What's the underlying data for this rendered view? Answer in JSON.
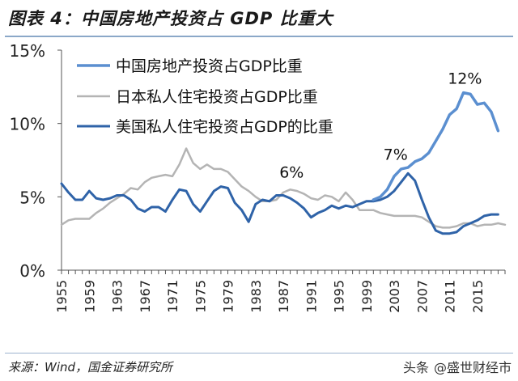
{
  "header": {
    "title": "图表 4：中国房地产投资占 GDP 比重大"
  },
  "footer": {
    "source": "来源：Wind，国金证券研究所"
  },
  "watermark": {
    "prefix": "头条",
    "handle": "@盛世财经市"
  },
  "colors": {
    "china": "#5b8fd0",
    "japan": "#b4b4b4",
    "usa": "#2f63a8",
    "axis": "#555555",
    "header_rule": "#8ba8c8"
  },
  "chart_data": {
    "type": "line",
    "title": "",
    "xlabel": "",
    "ylabel": "",
    "xlim": [
      1955,
      2019
    ],
    "ylim": [
      0,
      15
    ],
    "grid": false,
    "legend_position": "top-left",
    "x_tick_labels": [
      "1955",
      "1959",
      "1963",
      "1967",
      "1971",
      "1975",
      "1979",
      "1983",
      "1987",
      "1991",
      "1995",
      "1999",
      "2003",
      "2007",
      "2011",
      "2015"
    ],
    "y_tick_labels": [
      "0%",
      "5%",
      "10%",
      "15%"
    ],
    "y_ticks": [
      0,
      5,
      10,
      15
    ],
    "annotations": [
      {
        "text": "6%",
        "x": 1988.2,
        "y": 6.1
      },
      {
        "text": "7%",
        "x": 2003.2,
        "y": 7.3
      },
      {
        "text": "12%",
        "x": 2013.2,
        "y": 12.5
      }
    ],
    "series": [
      {
        "name": "中国房地产投资占GDP比重",
        "key": "china",
        "points": [
          [
            2000,
            4.8
          ],
          [
            2001,
            5.0
          ],
          [
            2002,
            5.5
          ],
          [
            2003,
            6.4
          ],
          [
            2004,
            6.9
          ],
          [
            2005,
            7.0
          ],
          [
            2006,
            7.4
          ],
          [
            2007,
            7.6
          ],
          [
            2008,
            8.0
          ],
          [
            2009,
            8.8
          ],
          [
            2010,
            9.6
          ],
          [
            2011,
            10.6
          ],
          [
            2012,
            11.0
          ],
          [
            2013,
            12.1
          ],
          [
            2014,
            12.0
          ],
          [
            2015,
            11.3
          ],
          [
            2016,
            11.4
          ],
          [
            2017,
            10.8
          ],
          [
            2018,
            9.5
          ]
        ]
      },
      {
        "name": "日本私人住宅投资占GDP比重",
        "key": "japan",
        "points": [
          [
            1955,
            3.1
          ],
          [
            1956,
            3.4
          ],
          [
            1957,
            3.5
          ],
          [
            1958,
            3.5
          ],
          [
            1959,
            3.5
          ],
          [
            1960,
            3.9
          ],
          [
            1961,
            4.2
          ],
          [
            1962,
            4.6
          ],
          [
            1963,
            4.9
          ],
          [
            1964,
            5.2
          ],
          [
            1965,
            5.6
          ],
          [
            1966,
            5.5
          ],
          [
            1967,
            6.0
          ],
          [
            1968,
            6.3
          ],
          [
            1969,
            6.4
          ],
          [
            1970,
            6.5
          ],
          [
            1971,
            6.4
          ],
          [
            1972,
            7.2
          ],
          [
            1973,
            8.3
          ],
          [
            1974,
            7.3
          ],
          [
            1975,
            6.9
          ],
          [
            1976,
            7.2
          ],
          [
            1977,
            6.9
          ],
          [
            1978,
            6.9
          ],
          [
            1979,
            6.7
          ],
          [
            1980,
            6.2
          ],
          [
            1981,
            5.7
          ],
          [
            1982,
            5.4
          ],
          [
            1983,
            5.0
          ],
          [
            1984,
            4.7
          ],
          [
            1985,
            4.7
          ],
          [
            1986,
            4.8
          ],
          [
            1987,
            5.3
          ],
          [
            1988,
            5.5
          ],
          [
            1989,
            5.4
          ],
          [
            1990,
            5.2
          ],
          [
            1991,
            4.9
          ],
          [
            1992,
            4.8
          ],
          [
            1993,
            5.1
          ],
          [
            1994,
            5.0
          ],
          [
            1995,
            4.7
          ],
          [
            1996,
            5.3
          ],
          [
            1997,
            4.8
          ],
          [
            1998,
            4.1
          ],
          [
            1999,
            4.1
          ],
          [
            2000,
            4.1
          ],
          [
            2001,
            3.9
          ],
          [
            2002,
            3.8
          ],
          [
            2003,
            3.7
          ],
          [
            2004,
            3.7
          ],
          [
            2005,
            3.7
          ],
          [
            2006,
            3.7
          ],
          [
            2007,
            3.6
          ],
          [
            2008,
            3.3
          ],
          [
            2009,
            3.0
          ],
          [
            2010,
            2.9
          ],
          [
            2011,
            2.9
          ],
          [
            2012,
            3.0
          ],
          [
            2013,
            3.2
          ],
          [
            2014,
            3.2
          ],
          [
            2015,
            3.0
          ],
          [
            2016,
            3.1
          ],
          [
            2017,
            3.1
          ],
          [
            2018,
            3.2
          ],
          [
            2019,
            3.1
          ]
        ]
      },
      {
        "name": "美国私人住宅投资占GDP的比重",
        "key": "usa",
        "points": [
          [
            1955,
            5.9
          ],
          [
            1956,
            5.3
          ],
          [
            1957,
            4.8
          ],
          [
            1958,
            4.8
          ],
          [
            1959,
            5.4
          ],
          [
            1960,
            4.9
          ],
          [
            1961,
            4.8
          ],
          [
            1962,
            4.9
          ],
          [
            1963,
            5.1
          ],
          [
            1964,
            5.1
          ],
          [
            1965,
            4.8
          ],
          [
            1966,
            4.2
          ],
          [
            1967,
            4.0
          ],
          [
            1968,
            4.3
          ],
          [
            1969,
            4.3
          ],
          [
            1970,
            4.0
          ],
          [
            1971,
            4.8
          ],
          [
            1972,
            5.5
          ],
          [
            1973,
            5.4
          ],
          [
            1974,
            4.5
          ],
          [
            1975,
            4.0
          ],
          [
            1976,
            4.7
          ],
          [
            1977,
            5.4
          ],
          [
            1978,
            5.7
          ],
          [
            1979,
            5.6
          ],
          [
            1980,
            4.6
          ],
          [
            1981,
            4.1
          ],
          [
            1982,
            3.3
          ],
          [
            1983,
            4.5
          ],
          [
            1984,
            4.8
          ],
          [
            1985,
            4.7
          ],
          [
            1986,
            5.1
          ],
          [
            1987,
            5.1
          ],
          [
            1988,
            4.9
          ],
          [
            1989,
            4.6
          ],
          [
            1990,
            4.2
          ],
          [
            1991,
            3.6
          ],
          [
            1992,
            3.9
          ],
          [
            1993,
            4.1
          ],
          [
            1994,
            4.4
          ],
          [
            1995,
            4.2
          ],
          [
            1996,
            4.4
          ],
          [
            1997,
            4.3
          ],
          [
            1998,
            4.5
          ],
          [
            1999,
            4.7
          ],
          [
            2000,
            4.7
          ],
          [
            2001,
            4.8
          ],
          [
            2002,
            5.0
          ],
          [
            2003,
            5.4
          ],
          [
            2004,
            6.0
          ],
          [
            2005,
            6.6
          ],
          [
            2006,
            6.1
          ],
          [
            2007,
            4.8
          ],
          [
            2008,
            3.6
          ],
          [
            2009,
            2.7
          ],
          [
            2010,
            2.5
          ],
          [
            2011,
            2.5
          ],
          [
            2012,
            2.6
          ],
          [
            2013,
            3.0
          ],
          [
            2014,
            3.2
          ],
          [
            2015,
            3.4
          ],
          [
            2016,
            3.7
          ],
          [
            2017,
            3.8
          ],
          [
            2018,
            3.8
          ]
        ]
      }
    ]
  }
}
